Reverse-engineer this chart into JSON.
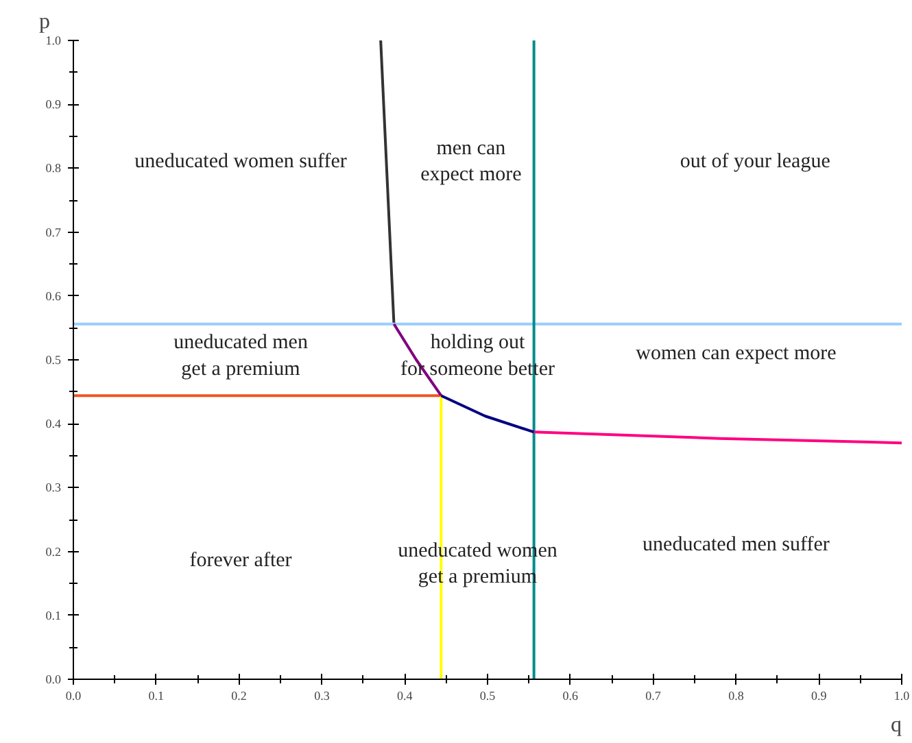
{
  "chart_data": {
    "type": "line",
    "xlabel": "q",
    "ylabel": "p",
    "xlim": [
      0,
      1
    ],
    "ylim": [
      0,
      1
    ],
    "xticks": [
      {
        "value": 0,
        "label": "0.0"
      },
      {
        "value": 0.1,
        "label": "0.1"
      },
      {
        "value": 0.2,
        "label": "0.2"
      },
      {
        "value": 0.3,
        "label": "0.3"
      },
      {
        "value": 0.4,
        "label": "0.4"
      },
      {
        "value": 0.5,
        "label": "0.5"
      },
      {
        "value": 0.6,
        "label": "0.6"
      },
      {
        "value": 0.7,
        "label": "0.7"
      },
      {
        "value": 0.8,
        "label": "0.8"
      },
      {
        "value": 0.9,
        "label": "0.9"
      },
      {
        "value": 1,
        "label": "1.0"
      }
    ],
    "yticks": [
      {
        "value": 0,
        "label": "0.0"
      },
      {
        "value": 0.1,
        "label": "0.1"
      },
      {
        "value": 0.2,
        "label": "0.2"
      },
      {
        "value": 0.3,
        "label": "0.3"
      },
      {
        "value": 0.4,
        "label": "0.4"
      },
      {
        "value": 0.5,
        "label": "0.5"
      },
      {
        "value": 0.6,
        "label": "0.6"
      },
      {
        "value": 0.7,
        "label": "0.7"
      },
      {
        "value": 0.8,
        "label": "0.8"
      },
      {
        "value": 0.9,
        "label": "0.9"
      },
      {
        "value": 1,
        "label": "1.0"
      }
    ],
    "grid": false,
    "series": [
      {
        "color": "#333333",
        "x": [
          0.371,
          0.387
        ],
        "values": [
          1.0,
          0.556
        ]
      },
      {
        "color": "#99ccff",
        "x": [
          0,
          1
        ],
        "values": [
          0.556,
          0.556
        ]
      },
      {
        "color": "#ee5522",
        "x": [
          0,
          0.444
        ],
        "values": [
          0.444,
          0.444
        ]
      },
      {
        "color": "#ffff00",
        "x": [
          0.444,
          0.444
        ],
        "values": [
          0,
          0.444
        ]
      },
      {
        "color": "#008b8b",
        "x": [
          0.556,
          0.556
        ],
        "values": [
          0,
          1
        ]
      },
      {
        "color": "#800080",
        "x": [
          0.387,
          0.414,
          0.444
        ],
        "values": [
          0.556,
          0.5,
          0.444
        ]
      },
      {
        "color": "#000080",
        "x": [
          0.444,
          0.497,
          0.556
        ],
        "values": [
          0.444,
          0.412,
          0.387
        ]
      },
      {
        "color": "#ff0080",
        "x": [
          0.556,
          0.78,
          1.0
        ],
        "values": [
          0.387,
          0.377,
          0.37
        ]
      }
    ],
    "annotations": [
      "uneducated women suffer",
      "men can\nexpect more",
      "out of your league",
      "uneducated men\nget a premium",
      "holding out\nfor someone better",
      "women can expect more",
      "forever after",
      "uneducated women\nget a premium",
      "uneducated men suffer"
    ]
  }
}
